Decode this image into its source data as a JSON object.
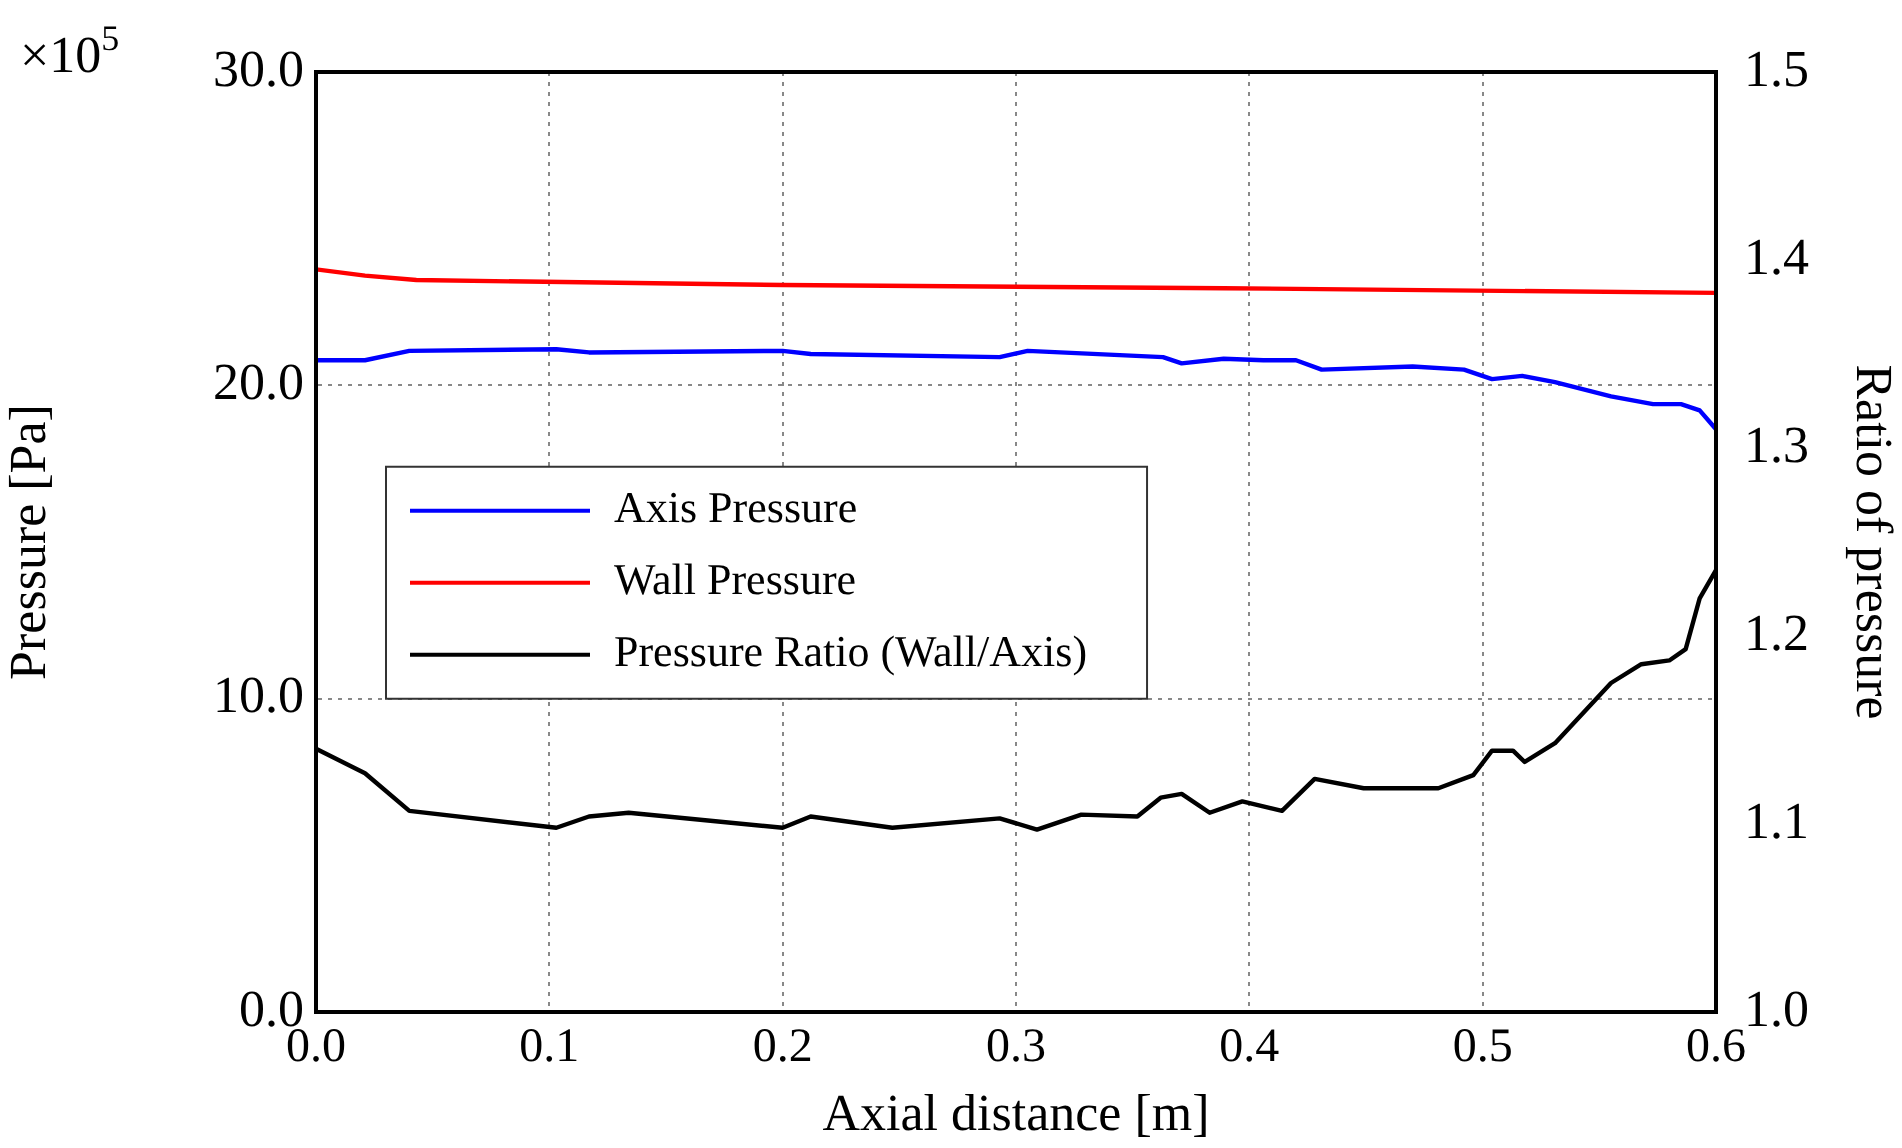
{
  "chart_data": {
    "type": "line",
    "xlabel": "Axial distance [m]",
    "ylabel": "Pressure [Pa]",
    "y2label": "Ratio of pressure",
    "annotations": [
      "×10$^{5}$"
    ],
    "xlim": [
      0,
      0.6
    ],
    "xticks": [
      {
        "value": 0,
        "label": "0.0"
      },
      {
        "value": 0.1,
        "label": "0.1"
      },
      {
        "value": 0.2,
        "label": "0.2"
      },
      {
        "value": 0.3,
        "label": "0.3"
      },
      {
        "value": 0.4,
        "label": "0.4"
      },
      {
        "value": 0.5,
        "label": "0.5"
      },
      {
        "value": 0.6,
        "label": "0.6"
      }
    ],
    "ylim": [
      0,
      30
    ],
    "yticks": [
      {
        "value": 0,
        "label": "0.0"
      },
      {
        "value": 10,
        "label": "10.0"
      },
      {
        "value": 20,
        "label": "20.0"
      },
      {
        "value": 30,
        "label": "30.0"
      }
    ],
    "y2lim": [
      1.0,
      1.5
    ],
    "y2ticks": [
      {
        "value": 1.0,
        "label": "1.0"
      },
      {
        "value": 1.1,
        "label": "1.1"
      },
      {
        "value": 1.2,
        "label": "1.2"
      },
      {
        "value": 1.3,
        "label": "1.3"
      },
      {
        "value": 1.4,
        "label": "1.4"
      },
      {
        "value": 1.5,
        "label": "1.5"
      }
    ],
    "grid": true,
    "legend": "center left",
    "line_style": "solid",
    "marker": "none",
    "series": [
      {
        "name": "Axis Pressure",
        "color": "#0000ff",
        "x": [
          0,
          0.021,
          0.04,
          0.103,
          0.117,
          0.2,
          0.212,
          0.293,
          0.305,
          0.363,
          0.371,
          0.389,
          0.406,
          0.42,
          0.431,
          0.47,
          0.492,
          0.504,
          0.517,
          0.531,
          0.555,
          0.573,
          0.585,
          0.593,
          0.6
        ],
        "values": [
          20.8,
          20.8,
          21.1,
          21.15,
          21.05,
          21.1,
          21.0,
          20.9,
          21.1,
          20.9,
          20.7,
          20.85,
          20.8,
          20.8,
          20.5,
          20.6,
          20.5,
          20.2,
          20.3,
          20.1,
          19.65,
          19.4,
          19.4,
          19.2,
          18.6
        ]
      },
      {
        "name": "Wall Pressure",
        "color": "#ff0000",
        "x": [
          0,
          0.021,
          0.043,
          0.2,
          0.389,
          0.6
        ],
        "values": [
          23.7,
          23.5,
          23.36,
          23.2,
          23.1,
          22.95
        ]
      },
      {
        "name": "Pressure Ratio (Wall/Axis)",
        "color": "#000000",
        "axis": "y2",
        "x": [
          0,
          0.021,
          0.04,
          0.103,
          0.117,
          0.134,
          0.2,
          0.212,
          0.247,
          0.293,
          0.309,
          0.328,
          0.352,
          0.362,
          0.371,
          0.383,
          0.397,
          0.414,
          0.428,
          0.449,
          0.481,
          0.496,
          0.504,
          0.513,
          0.518,
          0.531,
          0.555,
          0.568,
          0.58,
          0.587,
          0.593,
          0.6
        ],
        "values": [
          1.14,
          1.127,
          1.107,
          1.098,
          1.104,
          1.106,
          1.098,
          1.104,
          1.098,
          1.103,
          1.097,
          1.105,
          1.104,
          1.114,
          1.116,
          1.106,
          1.112,
          1.107,
          1.124,
          1.119,
          1.119,
          1.126,
          1.139,
          1.139,
          1.133,
          1.143,
          1.175,
          1.185,
          1.187,
          1.193,
          1.22,
          1.235
        ]
      }
    ]
  }
}
